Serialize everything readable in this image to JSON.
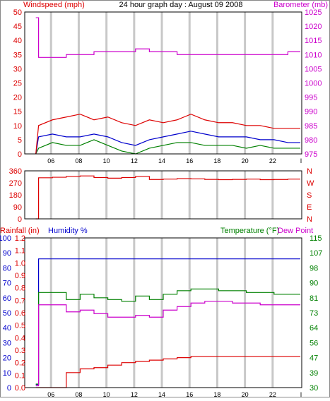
{
  "title": "24 hour graph day : August 09 2008",
  "colors": {
    "wind": "#dd0000",
    "wind_avg": "#0000cc",
    "wind_low": "#008000",
    "barometer": "#cc00cc",
    "direction": "#dd0000",
    "rainfall": "#dd0000",
    "humidity": "#0000cc",
    "temperature": "#008000",
    "dew_point": "#cc00cc",
    "grid": "#c8c8c8",
    "frame": "#000000"
  },
  "time_ticks": [
    "06",
    "08",
    "10",
    "12",
    "14",
    "16",
    "18",
    "20",
    "22",
    "I"
  ],
  "chart_data": [
    {
      "type": "line",
      "name": "wind-and-barometer",
      "left_label": "Windspeed (mph)",
      "right_label": "Barometer (mb)",
      "y_left_ticks": [
        "0",
        "5",
        "10",
        "15",
        "20",
        "25",
        "30",
        "35",
        "40",
        "45",
        "50"
      ],
      "y_right_ticks": [
        "975",
        "980",
        "985",
        "990",
        "995",
        "1000",
        "1005",
        "1010",
        "1015",
        "1020",
        "1025"
      ],
      "ylim_left": [
        0,
        50
      ],
      "ylim_right": [
        975,
        1025
      ],
      "x_hours": [
        4.8,
        5.0,
        6.0,
        7.0,
        8.0,
        9.0,
        10.0,
        11.0,
        12.0,
        13.0,
        14.0,
        15.0,
        16.0,
        17.0,
        18.0,
        19.0,
        20.0,
        21.0,
        22.0,
        23.0
      ],
      "wind_high": [
        0,
        10,
        12,
        13,
        14,
        12,
        13,
        11,
        10,
        12,
        11,
        12,
        14,
        12,
        11,
        11,
        10,
        10,
        9,
        9
      ],
      "wind_avg": [
        0,
        6,
        7,
        6,
        6,
        7,
        6,
        4,
        3,
        5,
        6,
        7,
        8,
        7,
        6,
        6,
        6,
        5,
        5,
        4
      ],
      "wind_low": [
        0,
        2,
        4,
        3,
        3,
        5,
        3,
        1,
        0,
        2,
        3,
        4,
        4,
        3,
        3,
        3,
        2,
        3,
        2,
        2
      ],
      "barometer": [
        1023,
        1009,
        1009,
        1010,
        1010,
        1011,
        1011,
        1011,
        1012,
        1011,
        1011,
        1010,
        1010,
        1010,
        1010,
        1010,
        1010,
        1010,
        1010,
        1011
      ]
    },
    {
      "type": "line",
      "name": "wind-direction",
      "y_left_ticks": [
        "0",
        "90",
        "180",
        "270",
        "360"
      ],
      "y_right_ticks": [
        "N",
        "E",
        "S",
        "W",
        "N"
      ],
      "ylim": [
        0,
        360
      ],
      "x_hours": [
        4.8,
        5.0,
        6.0,
        7.0,
        8.0,
        9.0,
        10.0,
        11.0,
        12.0,
        13.0,
        14.0,
        15.0,
        16.0,
        17.0,
        18.0,
        19.0,
        20.0,
        21.0,
        22.0,
        23.0
      ],
      "direction": [
        0,
        308,
        312,
        318,
        322,
        310,
        305,
        310,
        318,
        295,
        298,
        302,
        300,
        296,
        294,
        296,
        298,
        294,
        295,
        298
      ]
    },
    {
      "type": "line",
      "name": "rain-humidity-temperature",
      "left_label_1": "Rainfall (in)",
      "left_label_2": "Humidity %",
      "right_label_1": "Temperature (°F)",
      "right_label_2": "Dew Point",
      "y_rain_ticks": [
        "0.0",
        "0.1",
        "0.2",
        "0.3",
        "0.4",
        "0.5",
        "0.6",
        "0.7",
        "0.8",
        "0.9",
        "1.0",
        "1.1",
        "1.2"
      ],
      "y_humidity_ticks": [
        "0",
        "10",
        "20",
        "30",
        "40",
        "50",
        "60",
        "70",
        "80",
        "90",
        "100"
      ],
      "y_temp_ticks": [
        "30",
        "39",
        "47",
        "56",
        "64",
        "73",
        "81",
        "90",
        "98",
        "107",
        "115"
      ],
      "ylim_rain": [
        0,
        1.2
      ],
      "ylim_humidity": [
        0,
        100
      ],
      "ylim_temperature": [
        30,
        115
      ],
      "x_hours": [
        4.8,
        5.0,
        6.0,
        7.0,
        8.0,
        9.0,
        10.0,
        11.0,
        12.0,
        13.0,
        14.0,
        15.0,
        16.0,
        17.0,
        18.0,
        19.0,
        20.0,
        21.0,
        22.0,
        23.0
      ],
      "rainfall": [
        0.0,
        0.0,
        0.0,
        0.12,
        0.15,
        0.16,
        0.18,
        0.2,
        0.21,
        0.22,
        0.23,
        0.24,
        0.25,
        0.25,
        0.25,
        0.25,
        0.25,
        0.25,
        0.25,
        0.25
      ],
      "humidity": [
        2,
        86,
        86,
        86,
        86,
        86,
        86,
        86,
        86,
        86,
        86,
        86,
        86,
        86,
        86,
        86,
        86,
        86,
        86,
        86
      ],
      "temperature": [
        32,
        84,
        84,
        80,
        83,
        81,
        80,
        79,
        82,
        80,
        83,
        85,
        86,
        86,
        85,
        85,
        84,
        84,
        83,
        83
      ],
      "dew_point": [
        31,
        77,
        77,
        73,
        74,
        72,
        70,
        70,
        71,
        70,
        74,
        76,
        78,
        79,
        79,
        78,
        78,
        77,
        77,
        77
      ]
    }
  ]
}
